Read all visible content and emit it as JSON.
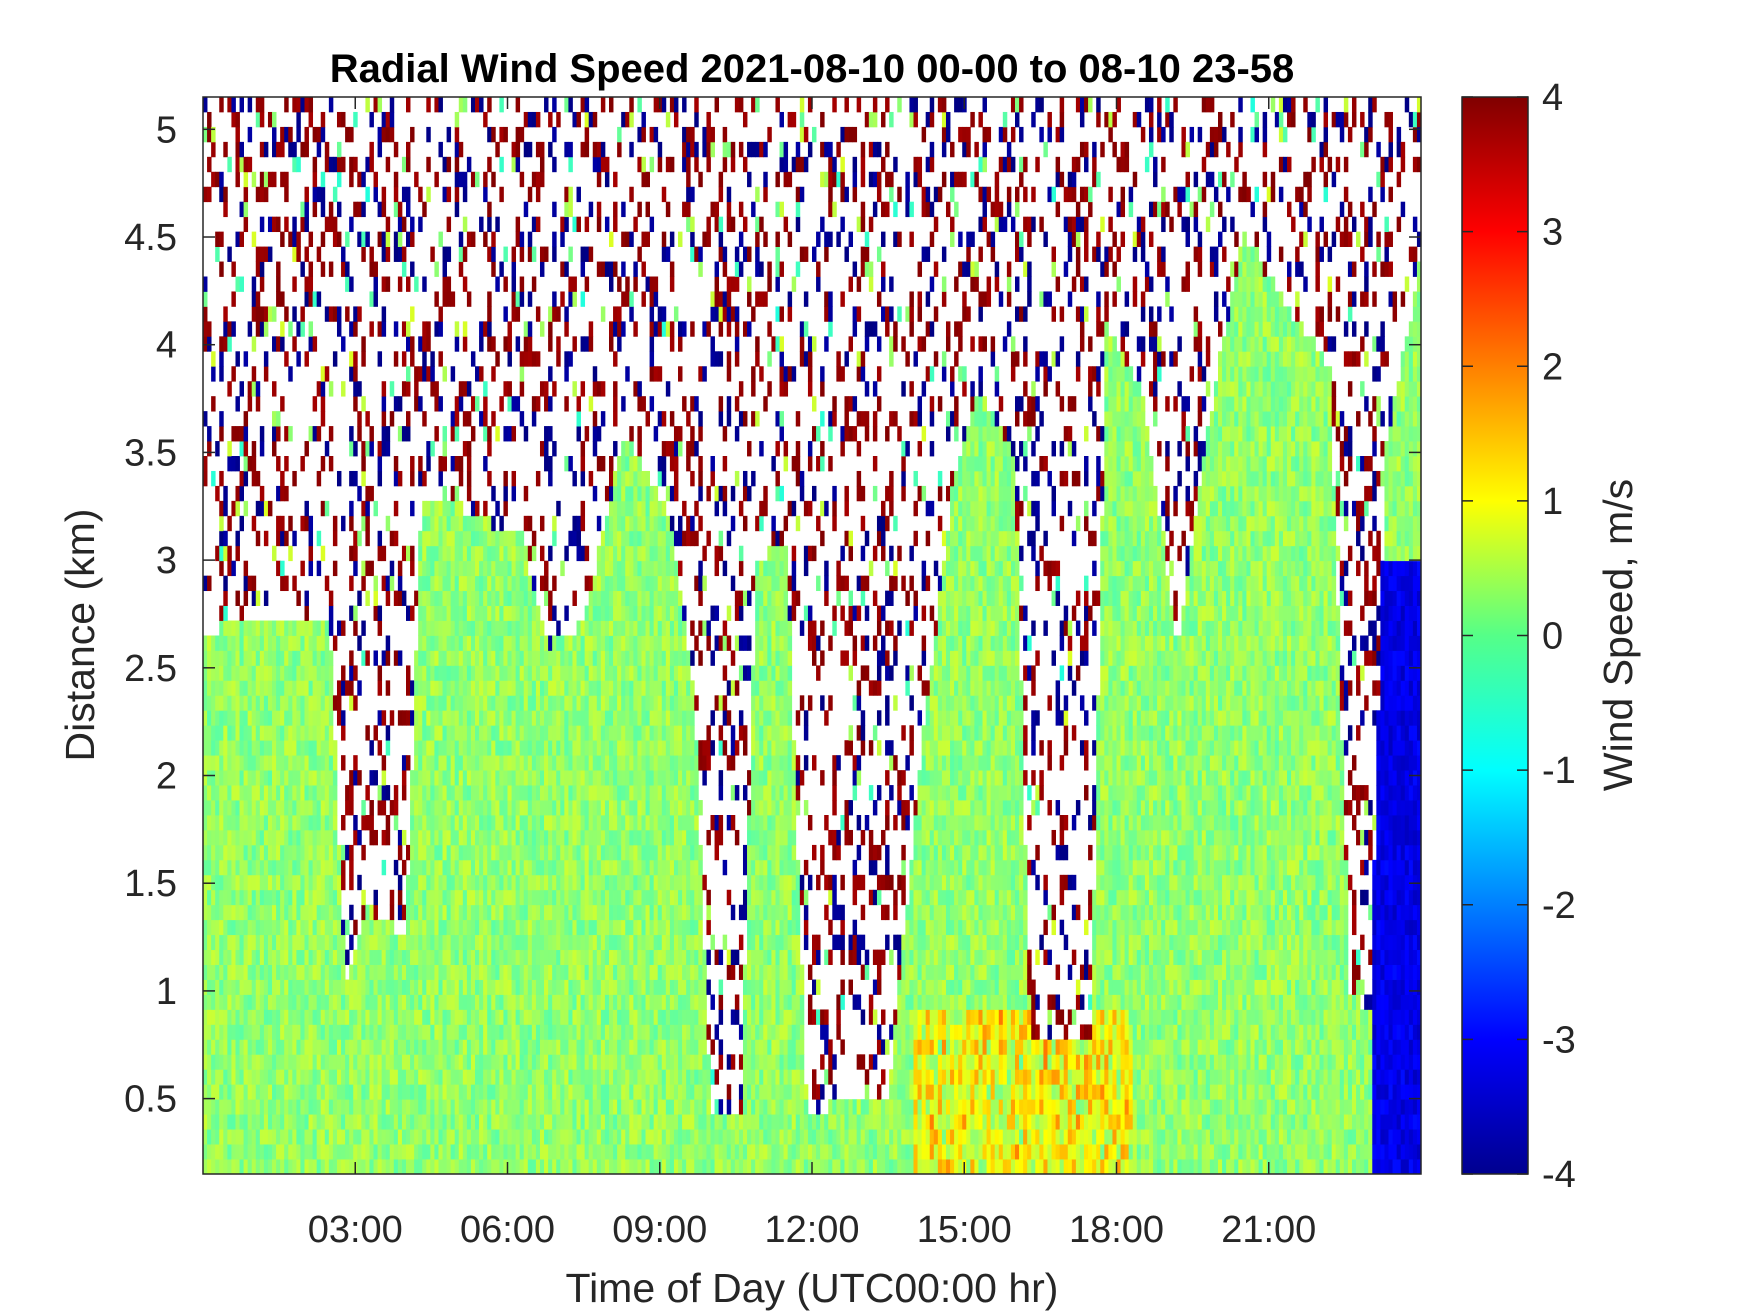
{
  "chart_data": {
    "type": "heatmap",
    "title": "Radial Wind Speed 2021-08-10 00-00 to 08-10 23-58",
    "xlabel": "Time of Day (UTC00:00 hr)",
    "ylabel": "Distance (km)",
    "colorbar_label": "Wind Speed, m/s",
    "colormap": "jet",
    "x_range_hours": [
      0,
      24
    ],
    "y_range_km": [
      0.15,
      5.15
    ],
    "clim": [
      -4,
      4
    ],
    "x_ticks": [
      3,
      6,
      9,
      12,
      15,
      18,
      21
    ],
    "x_tick_labels": [
      "03:00",
      "06:00",
      "09:00",
      "12:00",
      "15:00",
      "18:00",
      "21:00"
    ],
    "y_ticks": [
      0.5,
      1,
      1.5,
      2,
      2.5,
      3,
      3.5,
      4,
      4.5,
      5
    ],
    "y_tick_labels": [
      "0.5",
      "1",
      "1.5",
      "2",
      "2.5",
      "3",
      "3.5",
      "4",
      "4.5",
      "5"
    ],
    "colorbar_ticks": [
      4,
      3,
      2,
      1,
      0,
      -1,
      -2,
      -3,
      -4
    ],
    "colorbar_tick_labels": [
      "4",
      "3",
      "2",
      "1",
      "0",
      "-1",
      "-2",
      "-3",
      "-4"
    ],
    "valid_data_top_km": [
      {
        "t": 0.0,
        "top": 2.65
      },
      {
        "t": 0.5,
        "top": 2.7
      },
      {
        "t": 1.5,
        "top": 2.75
      },
      {
        "t": 2.5,
        "top": 2.7
      },
      {
        "t": 2.8,
        "top": 1.0
      },
      {
        "t": 3.2,
        "top": 1.4
      },
      {
        "t": 4.0,
        "top": 1.25
      },
      {
        "t": 4.3,
        "top": 3.25
      },
      {
        "t": 5.0,
        "top": 3.25
      },
      {
        "t": 6.3,
        "top": 3.1
      },
      {
        "t": 6.8,
        "top": 2.6
      },
      {
        "t": 7.5,
        "top": 2.7
      },
      {
        "t": 8.3,
        "top": 3.6
      },
      {
        "t": 9.2,
        "top": 3.2
      },
      {
        "t": 9.7,
        "top": 2.3
      },
      {
        "t": 10.0,
        "top": 0.45
      },
      {
        "t": 10.6,
        "top": 0.45
      },
      {
        "t": 10.9,
        "top": 3.0
      },
      {
        "t": 11.5,
        "top": 3.1
      },
      {
        "t": 11.9,
        "top": 0.45
      },
      {
        "t": 13.5,
        "top": 0.5
      },
      {
        "t": 14.2,
        "top": 2.2
      },
      {
        "t": 14.8,
        "top": 3.4
      },
      {
        "t": 15.3,
        "top": 3.8
      },
      {
        "t": 16.0,
        "top": 3.5
      },
      {
        "t": 16.3,
        "top": 0.8
      },
      {
        "t": 17.5,
        "top": 0.8
      },
      {
        "t": 17.8,
        "top": 4.1
      },
      {
        "t": 18.5,
        "top": 3.8
      },
      {
        "t": 19.2,
        "top": 2.6
      },
      {
        "t": 19.8,
        "top": 3.6
      },
      {
        "t": 20.5,
        "top": 4.5
      },
      {
        "t": 21.3,
        "top": 4.2
      },
      {
        "t": 22.2,
        "top": 3.9
      },
      {
        "t": 22.6,
        "top": 1.0
      },
      {
        "t": 23.0,
        "top": 0.9
      },
      {
        "t": 23.3,
        "top": 3.5
      },
      {
        "t": 24.0,
        "top": 4.4
      }
    ],
    "noise_note_values": [
      -4,
      4
    ]
  }
}
